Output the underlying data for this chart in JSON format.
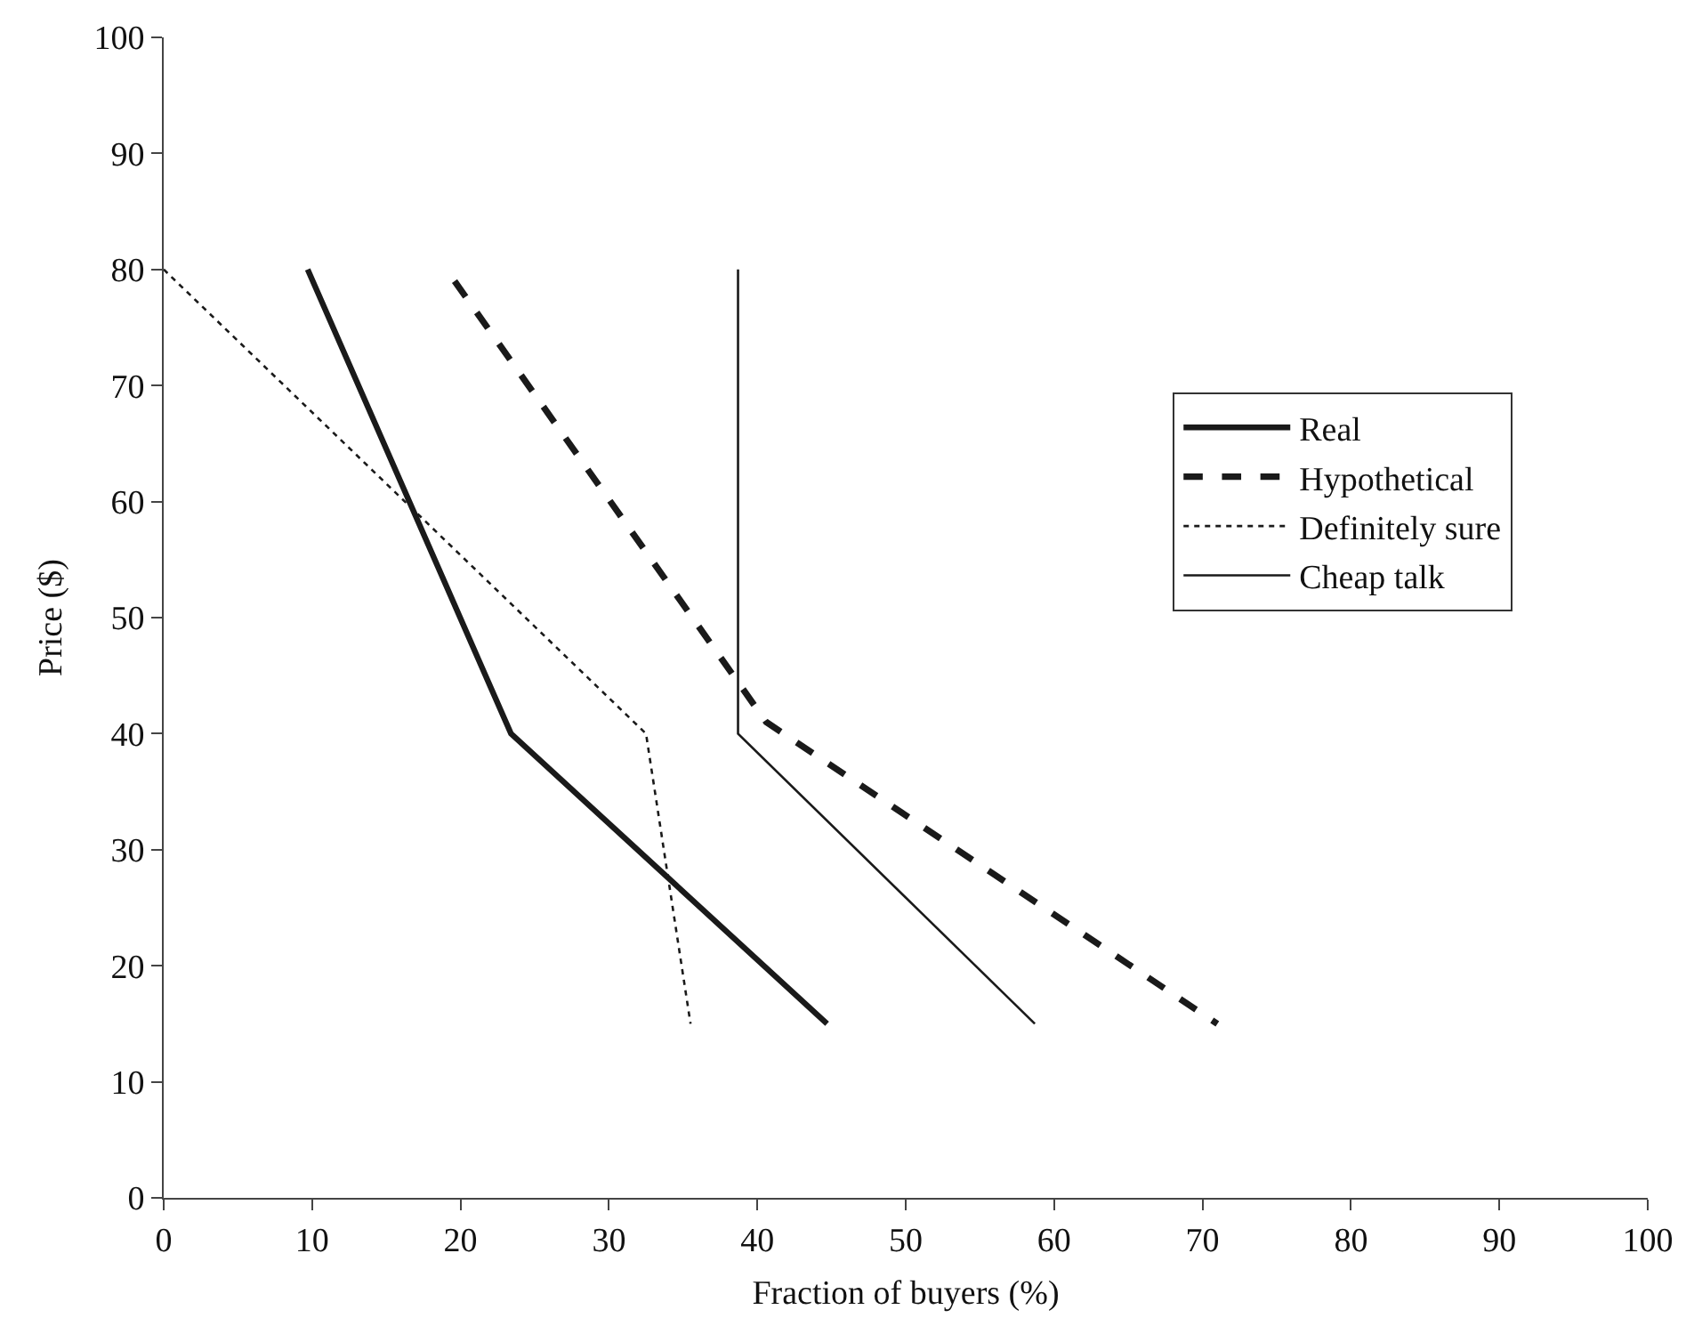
{
  "chart_data": {
    "type": "line",
    "xlabel": "Fraction of buyers (%)",
    "ylabel": "Price ($)",
    "xlim": [
      0,
      100
    ],
    "xticks": [
      0,
      10,
      20,
      30,
      40,
      50,
      60,
      70,
      80,
      90,
      100
    ],
    "ylim": [
      0,
      100
    ],
    "yticks": [
      0,
      10,
      20,
      30,
      40,
      50,
      60,
      70,
      80,
      90,
      100
    ],
    "grid": false,
    "legend": "right",
    "marker": "none",
    "series": [
      {
        "name": "Real",
        "color": "#1a1a1a",
        "line_style": "solid",
        "x": [
          9.7,
          23.4,
          44.7
        ],
        "values": [
          80,
          40,
          15
        ]
      },
      {
        "name": "Hypothetical",
        "color": "#1a1a1a",
        "line_style": "dashed",
        "x": [
          19.6,
          40.6,
          71
        ],
        "values": [
          79,
          41,
          15
        ]
      },
      {
        "name": "Definitely sure",
        "color": "#1a1a1a",
        "line_style": "dotted",
        "x": [
          0,
          32.5,
          35.5
        ],
        "values": [
          80,
          40,
          15
        ]
      },
      {
        "name": "Cheap talk",
        "color": "#1a1a1a",
        "line_style": "solid",
        "x": [
          38.7,
          38.7,
          58.7
        ],
        "values": [
          80,
          40,
          15
        ]
      }
    ]
  }
}
